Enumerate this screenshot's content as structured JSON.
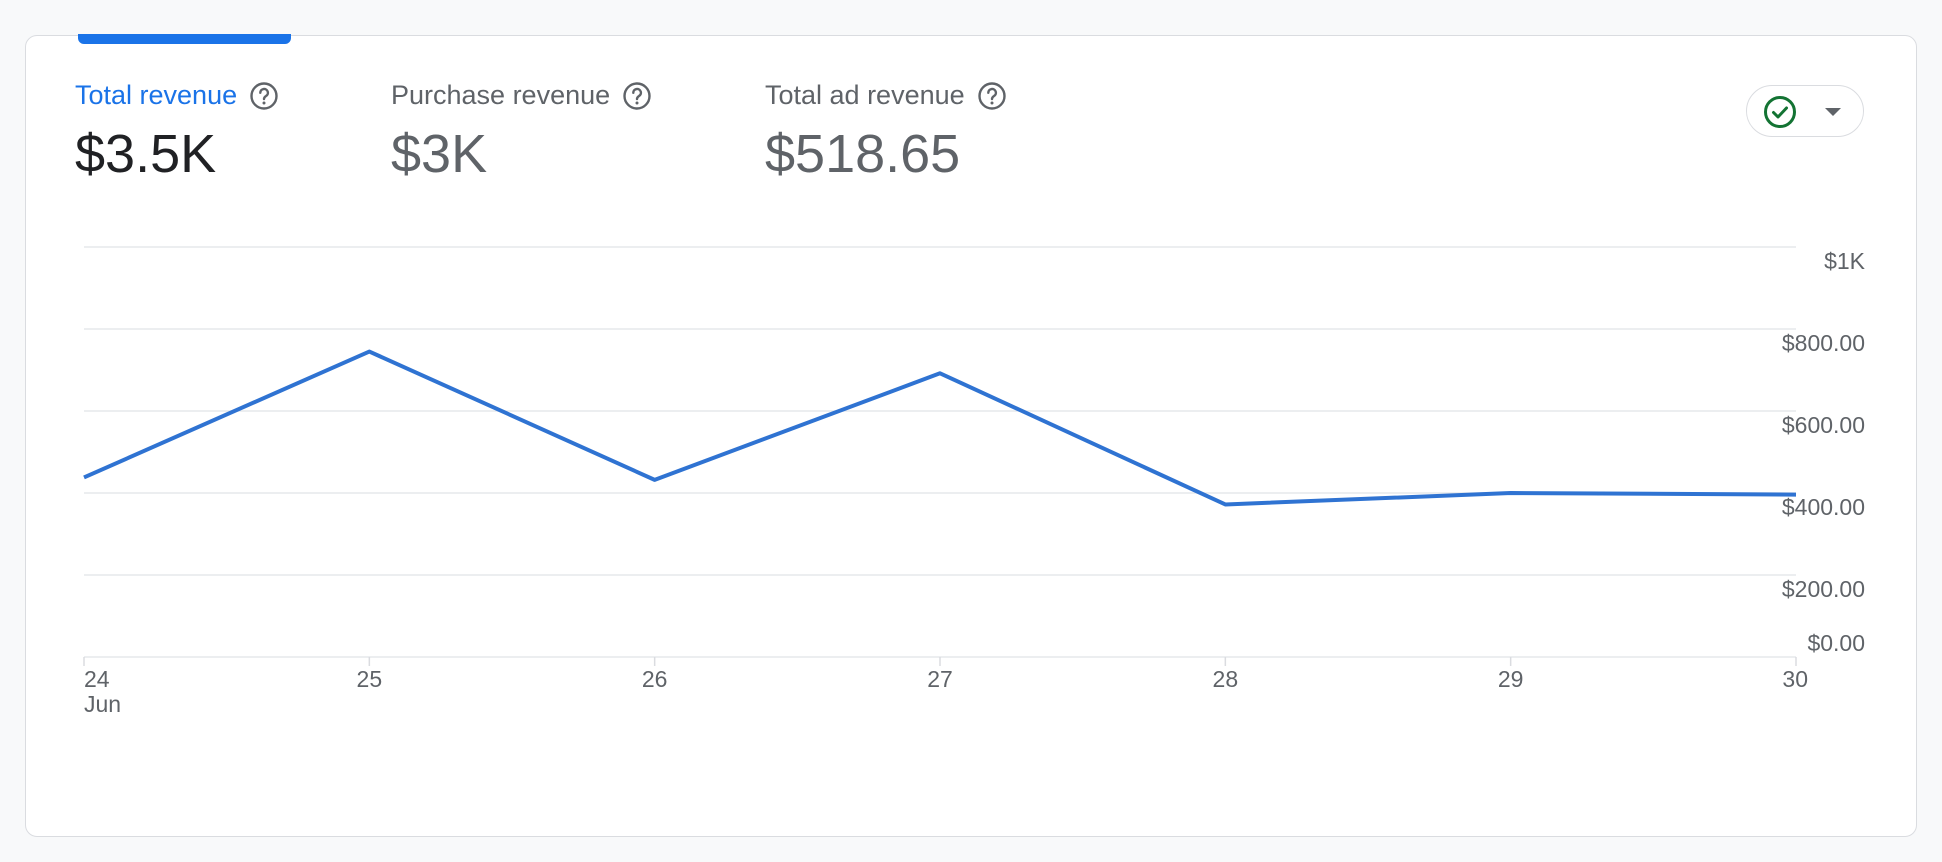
{
  "metrics": [
    {
      "label": "Total revenue",
      "value": "$3.5K",
      "active": true
    },
    {
      "label": "Purchase revenue",
      "value": "$3K",
      "active": false
    },
    {
      "label": "Total ad revenue",
      "value": "$518.65",
      "active": false
    }
  ],
  "status_button": {
    "icon": "check-circle-icon",
    "caret_icon": "caret-down-icon"
  },
  "colors": {
    "accent": "#1a73e8",
    "line": "#2f73d2",
    "status": "#137333"
  },
  "chart_data": {
    "type": "line",
    "x": [
      "24",
      "25",
      "26",
      "27",
      "28",
      "29",
      "30"
    ],
    "x_sublabels": [
      "Jun",
      "",
      "",
      "",
      "",
      "",
      ""
    ],
    "series": [
      {
        "values": [
          438,
          745,
          432,
          692,
          372,
          400,
          396
        ]
      }
    ],
    "y_ticks": [
      0,
      200,
      400,
      600,
      800,
      1000
    ],
    "y_tick_labels": [
      "$0.00",
      "$200.00",
      "$400.00",
      "$600.00",
      "$800.00",
      "$1K"
    ],
    "ylim": [
      0,
      1000
    ],
    "grid": true,
    "y_axis_position": "right"
  }
}
